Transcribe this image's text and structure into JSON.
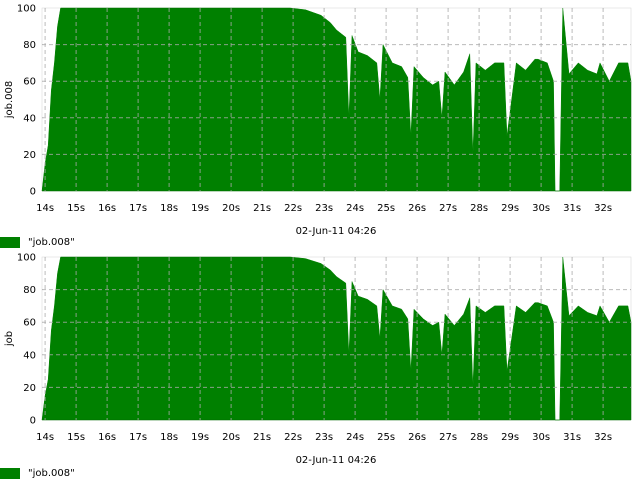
{
  "charts": [
    {
      "legend_label": "\"job.008\"",
      "chart_data": {
        "type": "area",
        "title": "",
        "xlabel": "02-Jun-11 04:26",
        "ylabel": "job.008",
        "ylim": [
          0,
          100
        ],
        "yticks": [
          0,
          20,
          40,
          60,
          80,
          100
        ],
        "xticks": [
          "14s",
          "15s",
          "16s",
          "17s",
          "18s",
          "19s",
          "20s",
          "21s",
          "22s",
          "23s",
          "24s",
          "25s",
          "26s",
          "27s",
          "28s",
          "29s",
          "30s",
          "31s",
          "32s"
        ],
        "grid": true,
        "legend": "bottom-left",
        "series": [
          {
            "name": "\"job.008\"",
            "color": "#008000",
            "x": [
              14.0,
              14.1,
              14.2,
              14.3,
              14.4,
              14.5,
              14.6,
              15.0,
              16.0,
              17.0,
              18.0,
              19.0,
              20.0,
              21.0,
              22.0,
              22.5,
              23.0,
              23.3,
              23.5,
              23.8,
              23.9,
              24.0,
              24.2,
              24.5,
              24.8,
              24.9,
              25.0,
              25.3,
              25.6,
              25.8,
              25.9,
              26.0,
              26.3,
              26.6,
              26.8,
              26.9,
              27.0,
              27.3,
              27.6,
              27.8,
              27.9,
              28.0,
              28.3,
              28.6,
              28.9,
              29.0,
              29.3,
              29.6,
              29.9,
              30.0,
              30.3,
              30.5,
              30.55,
              30.6,
              30.7,
              30.8,
              31.0,
              31.3,
              31.6,
              31.9,
              32.0,
              32.3,
              32.6,
              32.9,
              33.0
            ],
            "values": [
              0,
              15,
              25,
              55,
              70,
              90,
              100,
              100,
              100,
              100,
              100,
              100,
              100,
              100,
              100,
              99,
              96,
              92,
              88,
              84,
              40,
              85,
              76,
              74,
              70,
              50,
              80,
              70,
              68,
              62,
              30,
              68,
              62,
              58,
              60,
              40,
              65,
              58,
              65,
              75,
              20,
              70,
              66,
              70,
              70,
              30,
              70,
              66,
              72,
              72,
              70,
              60,
              0,
              0,
              0,
              100,
              64,
              70,
              66,
              64,
              70,
              60,
              70,
              70,
              60
            ]
          }
        ]
      }
    },
    {
      "legend_label": "\"job.008\"",
      "chart_data": {
        "type": "area",
        "title": "",
        "xlabel": "02-Jun-11 04:26",
        "ylabel": "job",
        "ylim": [
          0,
          100
        ],
        "yticks": [
          0,
          20,
          40,
          60,
          80,
          100
        ],
        "xticks": [
          "14s",
          "15s",
          "16s",
          "17s",
          "18s",
          "19s",
          "20s",
          "21s",
          "22s",
          "23s",
          "24s",
          "25s",
          "26s",
          "27s",
          "28s",
          "29s",
          "30s",
          "31s",
          "32s"
        ],
        "grid": true,
        "legend": "bottom-left",
        "series": [
          {
            "name": "\"job.008\"",
            "color": "#008000",
            "x": [
              14.0,
              14.1,
              14.2,
              14.3,
              14.4,
              14.5,
              14.6,
              15.0,
              16.0,
              17.0,
              18.0,
              19.0,
              20.0,
              21.0,
              22.0,
              22.5,
              23.0,
              23.3,
              23.5,
              23.8,
              23.9,
              24.0,
              24.2,
              24.5,
              24.8,
              24.9,
              25.0,
              25.3,
              25.6,
              25.8,
              25.9,
              26.0,
              26.3,
              26.6,
              26.8,
              26.9,
              27.0,
              27.3,
              27.6,
              27.8,
              27.9,
              28.0,
              28.3,
              28.6,
              28.9,
              29.0,
              29.3,
              29.6,
              29.9,
              30.0,
              30.3,
              30.5,
              30.55,
              30.6,
              30.7,
              30.8,
              31.0,
              31.3,
              31.6,
              31.9,
              32.0,
              32.3,
              32.6,
              32.9,
              33.0
            ],
            "values": [
              0,
              15,
              25,
              55,
              70,
              90,
              100,
              100,
              100,
              100,
              100,
              100,
              100,
              100,
              100,
              99,
              96,
              92,
              88,
              84,
              40,
              85,
              76,
              74,
              70,
              50,
              80,
              70,
              68,
              62,
              30,
              68,
              62,
              58,
              60,
              40,
              65,
              58,
              65,
              75,
              20,
              70,
              66,
              70,
              70,
              30,
              70,
              66,
              72,
              72,
              70,
              60,
              0,
              0,
              0,
              100,
              64,
              70,
              66,
              64,
              70,
              60,
              70,
              70,
              60
            ]
          }
        ]
      }
    }
  ]
}
